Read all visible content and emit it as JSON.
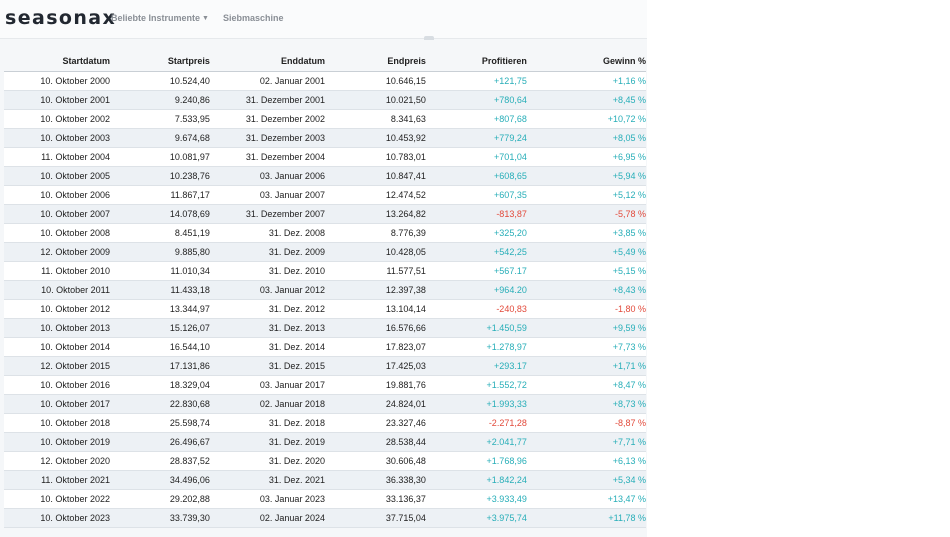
{
  "logo": "seasonax",
  "nav": {
    "item1": "Beliebte Instrumente",
    "item2": "Siebmaschine"
  },
  "colors": {
    "positive": "#27aeb8",
    "negative": "#e24a3b"
  },
  "table": {
    "columns": [
      "Startdatum",
      "Startpreis",
      "Enddatum",
      "Endpreis",
      "Profitieren",
      "Gewinn %"
    ],
    "rows": [
      [
        "10. Oktober 2000",
        "10.524,40",
        "02. Januar 2001",
        "10.646,15",
        "+121,75",
        "+1,16 %"
      ],
      [
        "10. Oktober 2001",
        "9.240,86",
        "31. Dezember 2001",
        "10.021,50",
        "+780,64",
        "+8,45 %"
      ],
      [
        "10. Oktober 2002",
        "7.533,95",
        "31. Dezember 2002",
        "8.341,63",
        "+807,68",
        "+10,72 %"
      ],
      [
        "10. Oktober 2003",
        "9.674,68",
        "31. Dezember 2003",
        "10.453,92",
        "+779,24",
        "+8,05 %"
      ],
      [
        "11. Oktober 2004",
        "10.081,97",
        "31. Dezember 2004",
        "10.783,01",
        "+701,04",
        "+6,95 %"
      ],
      [
        "10. Oktober 2005",
        "10.238,76",
        "03. Januar 2006",
        "10.847,41",
        "+608,65",
        "+5,94 %"
      ],
      [
        "10. Oktober 2006",
        "11.867,17",
        "03. Januar 2007",
        "12.474,52",
        "+607,35",
        "+5,12 %"
      ],
      [
        "10. Oktober 2007",
        "14.078,69",
        "31. Dezember 2007",
        "13.264,82",
        "-813,87",
        "-5,78 %"
      ],
      [
        "10. Oktober 2008",
        "8.451,19",
        "31. Dez. 2008",
        "8.776,39",
        "+325,20",
        "+3,85 %"
      ],
      [
        "12. Oktober 2009",
        "9.885,80",
        "31. Dez. 2009",
        "10.428,05",
        "+542,25",
        "+5,49 %"
      ],
      [
        "11. Oktober 2010",
        "11.010,34",
        "31. Dez. 2010",
        "11.577,51",
        "+567.17",
        "+5,15 %"
      ],
      [
        "10. Oktober 2011",
        "11.433,18",
        "03. Januar 2012",
        "12.397,38",
        "+964.20",
        "+8,43 %"
      ],
      [
        "10. Oktober 2012",
        "13.344,97",
        "31. Dez. 2012",
        "13.104,14",
        "-240,83",
        "-1,80 %"
      ],
      [
        "10. Oktober 2013",
        "15.126,07",
        "31. Dez. 2013",
        "16.576,66",
        "+1.450,59",
        "+9,59 %"
      ],
      [
        "10. Oktober 2014",
        "16.544,10",
        "31. Dez. 2014",
        "17.823,07",
        "+1.278,97",
        "+7,73 %"
      ],
      [
        "12. Oktober 2015",
        "17.131,86",
        "31. Dez. 2015",
        "17.425,03",
        "+293.17",
        "+1,71 %"
      ],
      [
        "10. Oktober 2016",
        "18.329,04",
        "03. Januar 2017",
        "19.881,76",
        "+1.552,72",
        "+8,47 %"
      ],
      [
        "10. Oktober 2017",
        "22.830,68",
        "02. Januar 2018",
        "24.824,01",
        "+1.993,33",
        "+8,73 %"
      ],
      [
        "10. Oktober 2018",
        "25.598,74",
        "31. Dez. 2018",
        "23.327,46",
        "-2.271,28",
        "-8,87 %"
      ],
      [
        "10. Oktober 2019",
        "26.496,67",
        "31. Dez. 2019",
        "28.538,44",
        "+2.041,77",
        "+7,71 %"
      ],
      [
        "12. Oktober 2020",
        "28.837,52",
        "31. Dez. 2020",
        "30.606,48",
        "+1.768,96",
        "+6,13 %"
      ],
      [
        "11. Oktober 2021",
        "34.496,06",
        "31. Dez. 2021",
        "36.338,30",
        "+1.842,24",
        "+5,34 %"
      ],
      [
        "10. Oktober 2022",
        "29.202,88",
        "03. Januar 2023",
        "33.136,37",
        "+3.933,49",
        "+13,47 %"
      ],
      [
        "10. Oktober 2023",
        "33.739,30",
        "02. Januar 2024",
        "37.715,04",
        "+3.975,74",
        "+11,78 %"
      ]
    ]
  }
}
